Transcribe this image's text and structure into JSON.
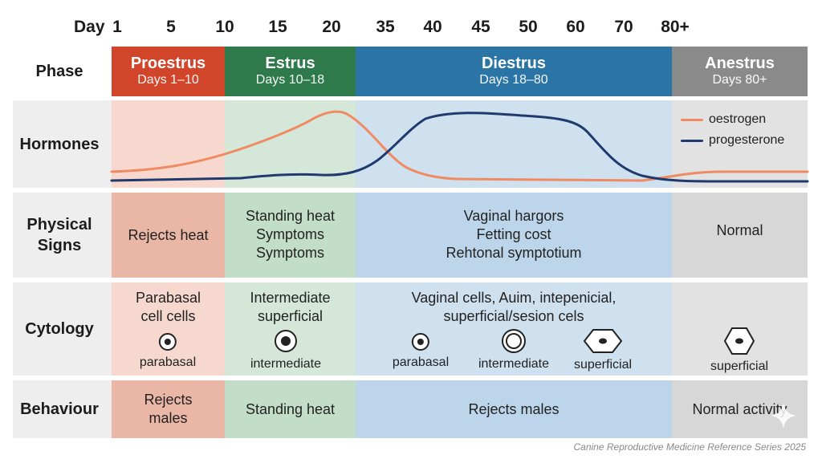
{
  "axis": {
    "title": "Day",
    "ticks": [
      "1",
      "5",
      "10",
      "15",
      "20",
      "35",
      "40",
      "45",
      "50",
      "60",
      "70",
      "80+"
    ]
  },
  "rows": {
    "phase": "Phase",
    "hormones": "Hormones",
    "physical": [
      "Physical",
      "Signs"
    ],
    "cytology": "Cytology",
    "behaviour": "Behaviour"
  },
  "phases": [
    {
      "name": "Proestrus",
      "days": "Days 1–10",
      "color": "#d1462b"
    },
    {
      "name": "Estrus",
      "days": "Days 10–18",
      "color": "#2f7a4b"
    },
    {
      "name": "Diestrus",
      "days": "Days 18–80",
      "color": "#2a75a6"
    },
    {
      "name": "Anestrus",
      "days": "Days 80+",
      "color": "#8a8a8a"
    }
  ],
  "zone_colors": [
    "#f6d8cf",
    "#d5e7d9",
    "#cfe0ee",
    "#e2e2e2"
  ],
  "zone_colors_strong": [
    "#eab6a6",
    "#c3dec8",
    "#bcd5ea",
    "#d7d7d7"
  ],
  "legend": [
    {
      "label": "oestrogen",
      "color": "#f08a63"
    },
    {
      "label": "progesterone",
      "color": "#1f3a6e"
    }
  ],
  "physical_signs": {
    "proestrus": [
      "Rejects heat"
    ],
    "estrus": [
      "Standing heat",
      "Symptoms",
      "Symptoms"
    ],
    "diestrus": [
      "Vaginal hargors",
      "Fetting cost",
      "Rehtonal symptotium"
    ],
    "anestrus": [
      "Normal"
    ]
  },
  "cytology": {
    "proestrus": [
      "Parabasal",
      "cell cells"
    ],
    "estrus": [
      "Intermediate",
      "superficial"
    ],
    "diestrus": [
      "Vaginal cells, Auim, intepenicial,",
      "superficial/sesion cels"
    ],
    "cells": {
      "proestrus_parabasal": "parabasal",
      "estrus_intermediate": "intermediate",
      "diestrus_parabasal": "parabasal",
      "diestrus_intermediate": "intermediate",
      "diestrus_superficial": "superficial",
      "anestrus_superficial": "superficial"
    }
  },
  "behaviour": {
    "proestrus": [
      "Rejects",
      "males"
    ],
    "estrus": [
      "Standing heat"
    ],
    "diestrus": [
      "Rejects males"
    ],
    "anestrus": [
      "Normal activity"
    ]
  },
  "footer": "Canine Reproductive Medicine Reference Series 2025"
}
